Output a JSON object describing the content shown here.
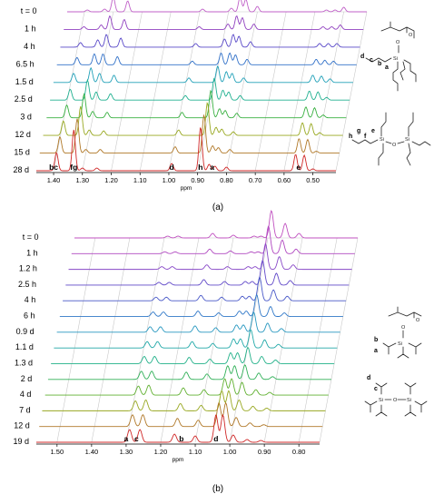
{
  "chart_data": [
    {
      "type": "line",
      "panel": "(a)",
      "caption": "(a)",
      "xlabel": "ppm",
      "xlim": [
        1.46,
        0.42
      ],
      "x_ticks": [
        "1.40",
        "1.30",
        "1.20",
        "1.10",
        "1.00",
        "0.90",
        "0.80",
        "0.70",
        "0.60",
        "0.50"
      ],
      "series_names": [
        "t = 0",
        "1 h",
        "4 h",
        "6.5 h",
        "1.5 d",
        "2.5 d",
        "3 d",
        "12 d",
        "15 d",
        "28 d"
      ],
      "colors": [
        "#c060c8",
        "#9040c0",
        "#5848c8",
        "#3070c8",
        "#20a0b8",
        "#20b090",
        "#38b040",
        "#98a820",
        "#b07828",
        "#d02828"
      ],
      "peak_labels": [
        {
          "label": "bc",
          "ppm": 1.4
        },
        {
          "label": "fg",
          "ppm": 1.33
        },
        {
          "label": "d",
          "ppm": 0.99
        },
        {
          "label": "h",
          "ppm": 0.89
        },
        {
          "label": "a",
          "ppm": 0.85
        },
        {
          "label": "e",
          "ppm": 0.55
        }
      ],
      "peaks": [
        {
          "ppm": 1.39,
          "h": [
            2,
            3,
            5,
            8,
            10,
            12,
            14,
            16,
            18,
            20
          ]
        },
        {
          "ppm": 1.33,
          "h": [
            3,
            5,
            8,
            12,
            16,
            22,
            26,
            32,
            38,
            45
          ]
        },
        {
          "ppm": 1.3,
          "h": [
            16,
            15,
            14,
            12,
            10,
            9,
            7,
            6,
            4,
            3
          ]
        },
        {
          "ppm": 1.25,
          "h": [
            12,
            11,
            10,
            9,
            8,
            7,
            6,
            5,
            4,
            3
          ]
        },
        {
          "ppm": 0.99,
          "h": [
            3,
            3,
            4,
            4,
            5,
            5,
            6,
            6,
            7,
            8
          ]
        },
        {
          "ppm": 0.89,
          "h": [
            4,
            6,
            9,
            13,
            18,
            24,
            30,
            36,
            42,
            48
          ]
        },
        {
          "ppm": 0.86,
          "h": [
            16,
            15,
            14,
            13,
            12,
            11,
            10,
            9,
            8,
            7
          ]
        },
        {
          "ppm": 0.84,
          "h": [
            14,
            13,
            12,
            11,
            10,
            9,
            8,
            7,
            6,
            5
          ]
        },
        {
          "ppm": 0.8,
          "h": [
            6,
            6,
            6,
            6,
            5,
            5,
            5,
            4,
            4,
            4
          ]
        },
        {
          "ppm": 0.56,
          "h": [
            2,
            3,
            4,
            6,
            8,
            10,
            12,
            14,
            16,
            18
          ]
        },
        {
          "ppm": 0.53,
          "h": [
            2,
            3,
            4,
            5,
            7,
            9,
            11,
            13,
            15,
            17
          ]
        },
        {
          "ppm": 0.5,
          "h": [
            5,
            5,
            4,
            4,
            4,
            3,
            3,
            3,
            2,
            2
          ]
        }
      ]
    },
    {
      "type": "line",
      "panel": "(b)",
      "caption": "(b)",
      "xlabel": "ppm",
      "xlim": [
        1.56,
        0.74
      ],
      "x_ticks": [
        "1.50",
        "1.40",
        "1.30",
        "1.20",
        "1.10",
        "1.00",
        "0.90",
        "0.80"
      ],
      "series_names": [
        "t = 0",
        "1 h",
        "1.2 h",
        "2.5 h",
        "4 h",
        "6 h",
        "0.9 d",
        "1.1 d",
        "1.3 d",
        "2 d",
        "4 d",
        "7 d",
        "12 d",
        "19 d"
      ],
      "colors": [
        "#c050c0",
        "#b048c0",
        "#8848c8",
        "#6048c8",
        "#4858c8",
        "#3078c8",
        "#2898c0",
        "#20a8a8",
        "#20b088",
        "#30b058",
        "#60b030",
        "#98a820",
        "#b07828",
        "#d02828"
      ],
      "peak_labels": [
        {
          "label": "a",
          "ppm": 1.3
        },
        {
          "label": "c",
          "ppm": 1.27
        },
        {
          "label": "b",
          "ppm": 1.14
        },
        {
          "label": "d",
          "ppm": 1.04
        }
      ],
      "peaks": [
        {
          "ppm": 1.29,
          "h": [
            2,
            2,
            3,
            3,
            4,
            5,
            6,
            7,
            8,
            9,
            10,
            11,
            13,
            14
          ]
        },
        {
          "ppm": 1.26,
          "h": [
            2,
            2,
            3,
            3,
            4,
            5,
            6,
            7,
            8,
            9,
            11,
            12,
            13,
            14
          ]
        },
        {
          "ppm": 1.16,
          "h": [
            5,
            5,
            5,
            6,
            6,
            6,
            7,
            7,
            7,
            8,
            8,
            8,
            9,
            9
          ]
        },
        {
          "ppm": 1.1,
          "h": [
            3,
            3,
            3,
            4,
            4,
            4,
            5,
            5,
            5,
            6,
            6,
            6,
            7,
            7
          ]
        },
        {
          "ppm": 1.04,
          "h": [
            2,
            2,
            3,
            4,
            5,
            6,
            8,
            10,
            12,
            15,
            18,
            22,
            26,
            30
          ]
        },
        {
          "ppm": 1.02,
          "h": [
            2,
            2,
            3,
            4,
            5,
            6,
            8,
            10,
            12,
            15,
            18,
            22,
            26,
            30
          ]
        },
        {
          "ppm": 0.99,
          "h": [
            30,
            30,
            28,
            27,
            26,
            24,
            22,
            20,
            18,
            16,
            14,
            12,
            10,
            8
          ]
        },
        {
          "ppm": 0.95,
          "h": [
            16,
            15,
            14,
            13,
            12,
            11,
            10,
            9,
            8,
            7,
            6,
            5,
            4,
            3
          ]
        },
        {
          "ppm": 0.91,
          "h": [
            5,
            5,
            5,
            5,
            5,
            4,
            4,
            4,
            4,
            3,
            3,
            3,
            2,
            2
          ]
        }
      ]
    }
  ],
  "structures": {
    "a": [
      "d",
      "c",
      "b",
      "a"
    ],
    "a2": [
      "h",
      "g",
      "f",
      "e"
    ],
    "b": [
      "b",
      "a"
    ],
    "b2": [
      "d",
      "c"
    ],
    "atoms": {
      "si": "Si",
      "o": "O"
    }
  }
}
